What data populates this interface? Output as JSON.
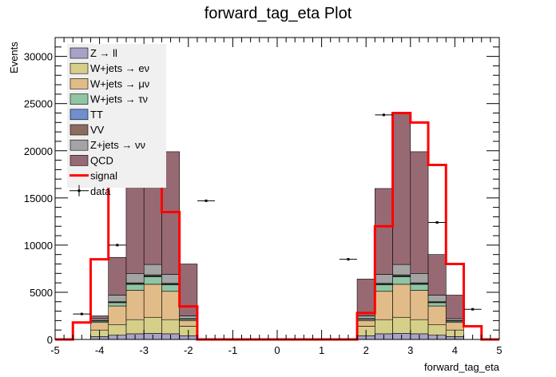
{
  "chart_data": {
    "type": "bar",
    "title": "forward_tag_eta Plot",
    "xlabel": "forward_tag_eta",
    "ylabel": "Events",
    "xlim": [
      -5,
      5
    ],
    "ylim": [
      0,
      32000
    ],
    "x_ticks": [
      -5,
      -4,
      -3,
      -2,
      -1,
      0,
      1,
      2,
      3,
      4,
      5
    ],
    "y_ticks": [
      0,
      5000,
      10000,
      15000,
      20000,
      25000,
      30000
    ],
    "bin_edges": [
      -5.0,
      -4.6,
      -4.2,
      -3.8,
      -3.4,
      -3.0,
      -2.6,
      -2.2,
      -1.8,
      -1.4,
      -1.0,
      -0.6,
      -0.2,
      0.2,
      0.6,
      1.0,
      1.4,
      1.8,
      2.2,
      2.6,
      3.0,
      3.4,
      3.8,
      4.2,
      4.6,
      5.0
    ],
    "stack": [
      {
        "name": "Z → ll",
        "color": "#a8a2c6",
        "values": [
          0,
          0,
          300,
          450,
          600,
          650,
          600,
          400,
          0,
          0,
          0,
          0,
          0,
          0,
          0,
          0,
          0,
          400,
          600,
          650,
          600,
          450,
          300,
          0,
          0
        ]
      },
      {
        "name": "W+jets → eν",
        "color": "#d6cf8a",
        "values": [
          0,
          0,
          700,
          1100,
          1500,
          1700,
          1500,
          1000,
          0,
          0,
          0,
          0,
          0,
          0,
          0,
          0,
          0,
          1000,
          1500,
          1700,
          1500,
          1100,
          700,
          0,
          0
        ]
      },
      {
        "name": "W+jets → μν",
        "color": "#e2bc88",
        "values": [
          0,
          0,
          800,
          2000,
          3100,
          3500,
          3000,
          600,
          0,
          0,
          0,
          0,
          0,
          0,
          0,
          0,
          0,
          600,
          3000,
          3500,
          3100,
          2000,
          800,
          0,
          0
        ]
      },
      {
        "name": "W+jets → τν",
        "color": "#8fc5a3",
        "values": [
          0,
          0,
          150,
          350,
          650,
          800,
          700,
          150,
          0,
          0,
          0,
          0,
          0,
          0,
          0,
          0,
          0,
          150,
          700,
          800,
          650,
          350,
          150,
          0,
          0
        ]
      },
      {
        "name": "TT",
        "color": "#6f8fcf",
        "values": [
          0,
          0,
          10,
          30,
          60,
          80,
          60,
          20,
          0,
          0,
          0,
          0,
          0,
          0,
          0,
          0,
          0,
          20,
          60,
          80,
          60,
          30,
          10,
          0,
          0
        ]
      },
      {
        "name": "VV",
        "color": "#8c6c60",
        "values": [
          0,
          0,
          40,
          70,
          90,
          120,
          90,
          30,
          0,
          0,
          0,
          0,
          0,
          0,
          0,
          0,
          0,
          30,
          90,
          120,
          90,
          70,
          40,
          0,
          0
        ]
      },
      {
        "name": "Z+jets → νν",
        "color": "#a4a4a4",
        "values": [
          0,
          0,
          200,
          700,
          1000,
          1100,
          950,
          300,
          0,
          0,
          0,
          0,
          0,
          0,
          0,
          0,
          0,
          300,
          950,
          1100,
          1000,
          700,
          200,
          0,
          0
        ]
      },
      {
        "name": "QCD",
        "color": "#976a73",
        "values": [
          0,
          0,
          300,
          4000,
          13500,
          11500,
          13000,
          5500,
          0,
          0,
          0,
          0,
          0,
          0,
          0,
          0,
          0,
          3900,
          9100,
          16000,
          12900,
          4300,
          2500,
          0,
          0
        ]
      }
    ],
    "signal": {
      "name": "signal",
      "color": "#ff0000",
      "values": [
        0,
        1800,
        8500,
        18000,
        20000,
        19000,
        13500,
        3500,
        0,
        0,
        0,
        0,
        0,
        0,
        0,
        0,
        0,
        2800,
        12000,
        24000,
        23000,
        18500,
        8000,
        1400,
        0
      ]
    },
    "data": {
      "name": "data",
      "points": [
        {
          "x": -4.4,
          "y": 2700
        },
        {
          "x": -3.6,
          "y": 10000
        },
        {
          "x": -1.6,
          "y": 14700
        },
        {
          "x": 1.6,
          "y": 8500
        },
        {
          "x": 2.4,
          "y": 23800
        },
        {
          "x": 3.6,
          "y": 12400
        },
        {
          "x": 4.4,
          "y": 3200
        }
      ]
    },
    "legend": {
      "position": "top-left",
      "entries": [
        "Z → ll",
        "W+jets → eν",
        "W+jets → μν",
        "W+jets → τν",
        "TT",
        "VV",
        "Z+jets → νν",
        "QCD",
        "signal",
        "data"
      ]
    }
  }
}
